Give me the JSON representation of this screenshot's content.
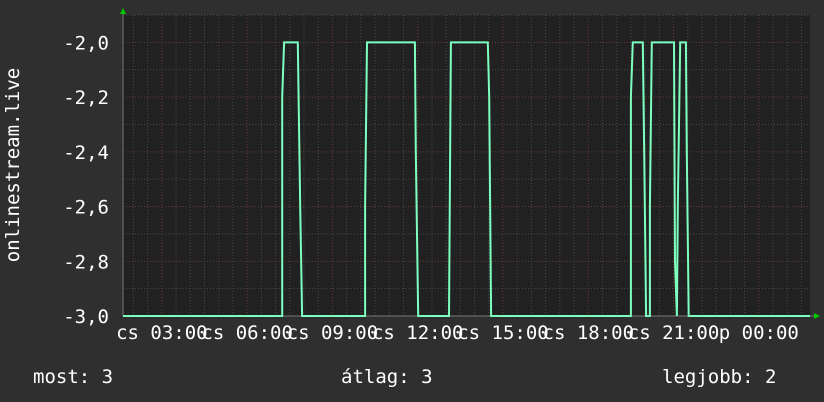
{
  "chart_data": {
    "type": "line",
    "ylabel": "onlinestream.live",
    "xlabel": "",
    "ylim": [
      -3.0,
      -1.9
    ],
    "xlim": [
      "cs 01:38",
      "p 01:48"
    ],
    "yticks": [
      "-2,0",
      "-2,2",
      "-2,4",
      "-2,6",
      "-2,8",
      "-3,0"
    ],
    "ytick_values": [
      -2.0,
      -2.2,
      -2.4,
      -2.6,
      -2.8,
      -3.0
    ],
    "xticks": [
      "cs 03:00",
      "cs 06:00",
      "cs 09:00",
      "cs 12:00",
      "cs 15:00",
      "cs 18:00",
      "cs 21:00",
      "p 00:00"
    ],
    "grid": true,
    "colors": {
      "background": "#2f2f2f",
      "plot": "#212121",
      "line": "#7dffbf",
      "major_grid": "#6a3a3a",
      "minor_grid": "#4a4a4a",
      "arrow": "#00cc00"
    },
    "series": [
      {
        "points": [
          [
            "cs 01:38",
            -3.0
          ],
          [
            "cs 07:14",
            -3.0
          ],
          [
            "cs 07:14",
            -2.2
          ],
          [
            "cs 07:18",
            -2.0
          ],
          [
            "cs 07:47",
            -2.0
          ],
          [
            "cs 07:52",
            -2.6
          ],
          [
            "cs 07:52",
            -2.6
          ],
          [
            "cs 07:56",
            -3.0
          ],
          [
            "cs 10:09",
            -3.0
          ],
          [
            "cs 10:09",
            -2.6
          ],
          [
            "cs 10:13",
            -2.0
          ],
          [
            "cs 11:54",
            -2.0
          ],
          [
            "cs 11:56",
            -2.4
          ],
          [
            "cs 12:01",
            -3.0
          ],
          [
            "cs 13:06",
            -3.0
          ],
          [
            "cs 13:10",
            -2.0
          ],
          [
            "cs 14:28",
            -2.0
          ],
          [
            "cs 14:31",
            -2.2
          ],
          [
            "cs 14:35",
            -3.0
          ],
          [
            "cs 19:30",
            -3.0
          ],
          [
            "cs 19:30",
            -2.2
          ],
          [
            "cs 19:34",
            -2.0
          ],
          [
            "cs 19:55",
            -2.0
          ],
          [
            "cs 19:58",
            -2.4
          ],
          [
            "cs 20:02",
            -3.0
          ],
          [
            "cs 20:10",
            -3.0
          ],
          [
            "cs 20:10",
            -2.6
          ],
          [
            "cs 20:14",
            -2.0
          ],
          [
            "cs 21:01",
            -2.0
          ],
          [
            "cs 21:03",
            -2.8
          ],
          [
            "cs 21:07",
            -3.0
          ],
          [
            "cs 21:09",
            -2.6
          ],
          [
            "cs 21:14",
            -2.0
          ],
          [
            "cs 21:26",
            -2.0
          ],
          [
            "cs 21:28",
            -2.4
          ],
          [
            "cs 21:32",
            -3.0
          ],
          [
            "p 01:48",
            -3.0
          ]
        ]
      }
    ],
    "legend": {
      "current_label": "most: 3",
      "average_label": "átlag: 3",
      "best_label": "legjobb: 2"
    }
  }
}
